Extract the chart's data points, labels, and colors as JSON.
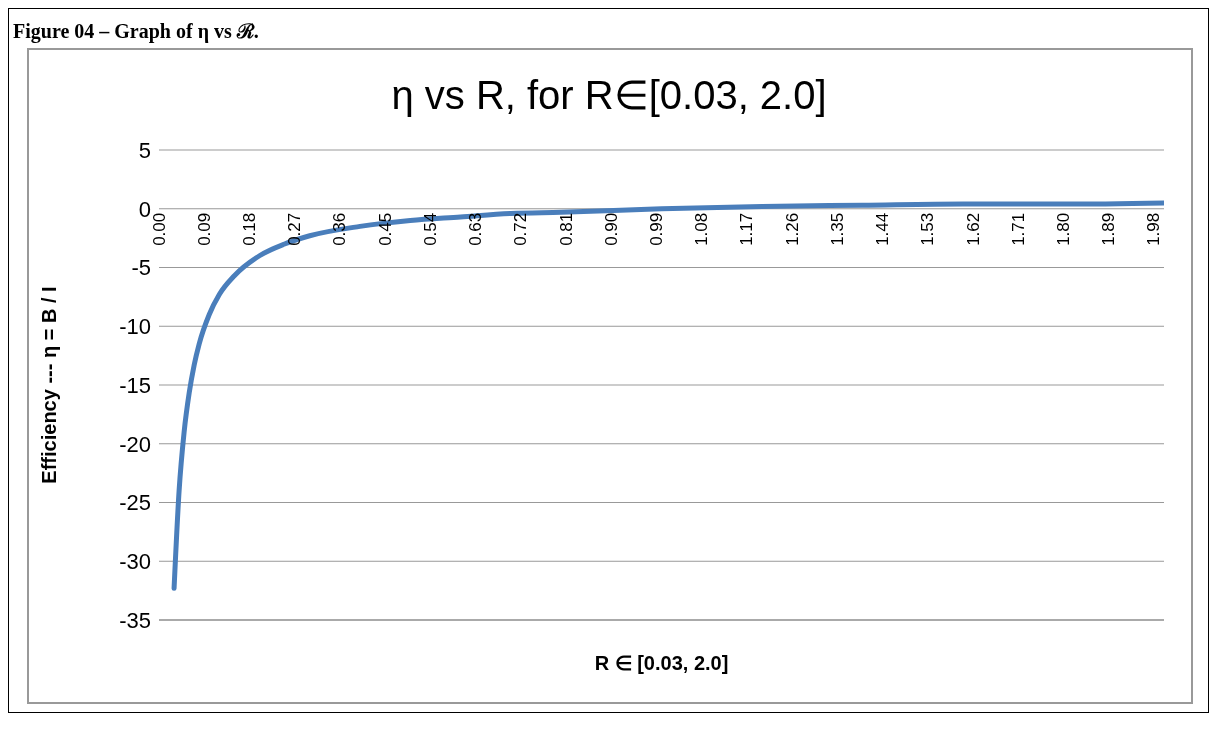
{
  "chart_data": {
    "type": "line",
    "title": "η vs R, for R∈[0.03, 2.0]",
    "xlabel": "R ∈ [0.03, 2.0]",
    "ylabel": "Efficiency ---    η = B / I",
    "annotations": [
      "Figure 04 – Graph of η vs ℛ."
    ],
    "x": [
      0.03,
      0.04,
      0.05,
      0.06,
      0.07,
      0.08,
      0.1,
      0.12,
      0.15,
      0.2,
      0.25,
      0.3,
      0.4,
      0.5,
      0.6,
      0.7,
      0.8,
      1.0,
      1.2,
      1.4,
      1.6,
      1.8,
      2.0
    ],
    "series": [
      {
        "color": "#4a7ebb",
        "values": [
          -32.3,
          -24,
          -19,
          -15.7,
          -13.3,
          -11.5,
          -9,
          -7.3,
          -5.7,
          -4,
          -3,
          -2.3,
          -1.5,
          -1,
          -0.7,
          -0.4,
          -0.3,
          0,
          0.2,
          0.3,
          0.4,
          0.4,
          0.5
        ]
      }
    ],
    "xlim": [
      0,
      2.0
    ],
    "xticks": [
      {
        "value": 0,
        "label": "0.00"
      },
      {
        "value": 0.09,
        "label": "0.09"
      },
      {
        "value": 0.18,
        "label": "0.18"
      },
      {
        "value": 0.27,
        "label": "0.27"
      },
      {
        "value": 0.36,
        "label": "0.36"
      },
      {
        "value": 0.45,
        "label": "0.45"
      },
      {
        "value": 0.54,
        "label": "0.54"
      },
      {
        "value": 0.63,
        "label": "0.63"
      },
      {
        "value": 0.72,
        "label": "0.72"
      },
      {
        "value": 0.81,
        "label": "0.81"
      },
      {
        "value": 0.9,
        "label": "0.90"
      },
      {
        "value": 0.99,
        "label": "0.99"
      },
      {
        "value": 1.08,
        "label": "1.08"
      },
      {
        "value": 1.17,
        "label": "1.17"
      },
      {
        "value": 1.26,
        "label": "1.26"
      },
      {
        "value": 1.35,
        "label": "1.35"
      },
      {
        "value": 1.44,
        "label": "1.44"
      },
      {
        "value": 1.53,
        "label": "1.53"
      },
      {
        "value": 1.62,
        "label": "1.62"
      },
      {
        "value": 1.71,
        "label": "1.71"
      },
      {
        "value": 1.8,
        "label": "1.80"
      },
      {
        "value": 1.89,
        "label": "1.89"
      },
      {
        "value": 1.98,
        "label": "1.98"
      }
    ],
    "ylim": [
      -35,
      5
    ],
    "yticks": [
      -35,
      -30,
      -25,
      -20,
      -15,
      -10,
      -5,
      0,
      5
    ],
    "grid": "y",
    "marker": "none",
    "line_style": "solid"
  }
}
